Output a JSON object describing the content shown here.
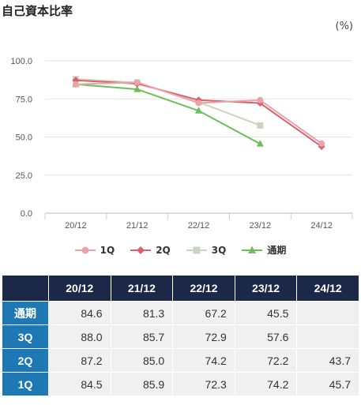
{
  "title": "自己資本比率",
  "unit_label": "(%)",
  "chart_data": {
    "type": "line",
    "categories": [
      "20/12",
      "21/12",
      "22/12",
      "23/12",
      "24/12"
    ],
    "ylim": [
      0,
      100
    ],
    "yticks": [
      "0.0",
      "25.0",
      "50.0",
      "75.0",
      "100.0"
    ],
    "grid": true,
    "legend_position": "bottom",
    "series": [
      {
        "name": "1Q",
        "color": "#e8a4a8",
        "marker": "circle",
        "values": [
          84.5,
          85.9,
          72.3,
          74.2,
          45.7
        ]
      },
      {
        "name": "2Q",
        "color": "#d9606e",
        "marker": "diamond",
        "values": [
          87.2,
          85.0,
          74.2,
          72.2,
          43.7
        ]
      },
      {
        "name": "3Q",
        "color": "#c9d6bd",
        "marker": "square",
        "values": [
          88.0,
          85.7,
          72.9,
          57.6,
          null
        ]
      },
      {
        "name": "通期",
        "color": "#6cbf5c",
        "marker": "triangle",
        "values": [
          84.6,
          81.3,
          67.2,
          45.5,
          null
        ]
      }
    ]
  },
  "table": {
    "headers": [
      "20/12",
      "21/12",
      "22/12",
      "23/12",
      "24/12"
    ],
    "rows": [
      {
        "label": "通期",
        "values": [
          "84.6",
          "81.3",
          "67.2",
          "45.5",
          ""
        ]
      },
      {
        "label": "3Q",
        "values": [
          "88.0",
          "85.7",
          "72.9",
          "57.6",
          ""
        ]
      },
      {
        "label": "2Q",
        "values": [
          "87.2",
          "85.0",
          "74.2",
          "72.2",
          "43.7"
        ]
      },
      {
        "label": "1Q",
        "values": [
          "84.5",
          "85.9",
          "72.3",
          "74.2",
          "45.7"
        ]
      }
    ]
  }
}
